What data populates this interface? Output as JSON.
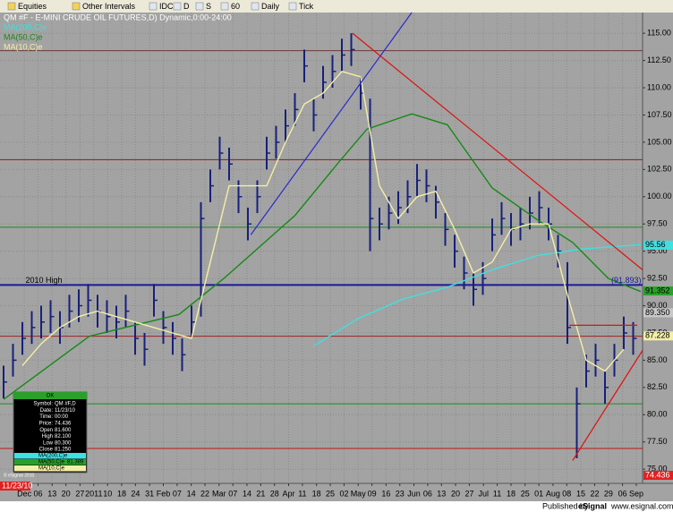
{
  "chart_data": {
    "type": "ohlc",
    "title": "QM #F - E-MINI CRUDE OIL FUTURES,D) Dynamic,0:00-24:00",
    "color": "#17207a",
    "x": [
      0,
      3,
      6,
      9,
      12,
      15,
      18,
      21,
      24,
      27,
      30,
      33,
      36,
      39,
      42,
      45,
      48,
      51,
      54,
      57,
      60,
      63,
      66,
      69,
      72,
      75,
      78,
      81,
      84,
      87,
      90,
      93,
      96,
      99,
      102,
      105,
      108,
      111,
      114,
      117,
      120,
      123,
      126,
      129,
      132,
      135,
      138,
      141,
      144,
      147,
      150,
      153,
      156,
      159,
      162,
      165,
      168,
      171,
      174,
      177,
      180,
      183,
      186,
      189,
      192,
      195,
      198,
      201
    ],
    "high": [
      84.5,
      86.5,
      88.5,
      89.5,
      90,
      90.5,
      89.5,
      91,
      91.5,
      92,
      91,
      90.5,
      90,
      91,
      88.5,
      87.5,
      92,
      89.5,
      88.5,
      87,
      90,
      99.5,
      102.5,
      105.5,
      104.5,
      101.5,
      99,
      101.5,
      105.5,
      106.5,
      108,
      109.5,
      113.5,
      109,
      112,
      113,
      114.5,
      115,
      111,
      109,
      99,
      100,
      100.5,
      101.5,
      103,
      102.5,
      101,
      98.5,
      96.5,
      94.5,
      93,
      94,
      98,
      99.5,
      98.5,
      99,
      100,
      100.5,
      99,
      96.5,
      94,
      82.5,
      85.5,
      86.5,
      84,
      86.5,
      89,
      88.5
    ],
    "low": [
      81.5,
      83.5,
      85.5,
      86.5,
      87,
      87.5,
      86.5,
      88,
      88.5,
      89,
      88,
      87.5,
      87,
      88,
      85.5,
      84.5,
      89,
      86.5,
      85.5,
      84,
      87,
      89,
      99.5,
      102.5,
      101.5,
      98.5,
      96,
      98.5,
      102.5,
      103.5,
      105,
      106.5,
      110.5,
      106,
      109,
      110,
      111.5,
      112,
      108,
      95,
      96,
      97,
      97.5,
      98.5,
      100,
      99.5,
      98,
      95.5,
      93.5,
      91.5,
      90,
      91,
      95,
      96.5,
      95.5,
      96,
      97,
      97.5,
      96,
      93.5,
      86.5,
      76,
      82.5,
      83.5,
      81,
      83.5,
      86,
      85.5
    ],
    "close": [
      83,
      85,
      87,
      88,
      88.5,
      89,
      88,
      89.5,
      90,
      90.5,
      89.5,
      89,
      88.5,
      89.5,
      87,
      86,
      90.5,
      88,
      87,
      85.5,
      88.5,
      98,
      101,
      104,
      103,
      100,
      97.5,
      100,
      104,
      105,
      106.5,
      108,
      112,
      107.5,
      110.5,
      111.5,
      113,
      113.5,
      109.5,
      98,
      97.5,
      98.5,
      99,
      100,
      101.5,
      101,
      99.5,
      97,
      95,
      93,
      91.5,
      92.5,
      96.5,
      98,
      97,
      97.5,
      98.5,
      99,
      97.5,
      95,
      88,
      81,
      84,
      85,
      82.5,
      85,
      87.5,
      87
    ],
    "series": [
      {
        "name": "MA(200,C)e",
        "color": "#3fe0e0",
        "x": [
          98.9,
          113.1,
          127.4,
          141.7,
          156,
          170.3,
          184.6,
          203.4
        ],
        "values": [
          86.3,
          88.8,
          90.6,
          91.7,
          93.3,
          94.6,
          95.2,
          95.6
        ]
      },
      {
        "name": "MA(50,C)e",
        "color": "#168a16",
        "x": [
          0,
          27.4,
          56,
          70.3,
          93.1,
          107.4,
          116,
          130.3,
          141.7,
          156,
          170.3,
          181.7,
          193.1,
          203.4
        ],
        "values": [
          81.4,
          87.2,
          89.2,
          92.5,
          98.3,
          103.3,
          106.2,
          107.6,
          106.6,
          100.8,
          97.9,
          95.8,
          92.5,
          91.3
        ]
      },
      {
        "name": "MA(10,C)e",
        "color": "#f3efa6",
        "x": [
          6,
          12,
          18,
          24,
          30,
          36,
          42,
          48,
          54,
          60,
          66,
          72,
          78,
          84,
          90,
          96,
          102,
          108,
          114,
          120,
          126,
          132,
          138,
          144,
          150,
          156,
          162,
          168,
          174,
          180,
          186,
          192,
          198
        ],
        "values": [
          84.5,
          86.5,
          88,
          89,
          89.5,
          89,
          88.5,
          88,
          87.5,
          87,
          94,
          101,
          101,
          101,
          105,
          108.5,
          109.5,
          111.5,
          111,
          101,
          98,
          100,
          100.5,
          97,
          93,
          94,
          97,
          97.5,
          97.5,
          91,
          85,
          84,
          86
        ]
      }
    ],
    "levels": [
      {
        "value": 91.9,
        "color": "#1a1a9a"
      },
      {
        "value": 103.4,
        "color": "#8b1a1a"
      },
      {
        "value": 87.2,
        "color": "#a02020"
      },
      {
        "value": 97.2,
        "color": "#1e8a1e"
      },
      {
        "value": 81.0,
        "color": "#1e8a1e"
      },
      {
        "value": 76.9,
        "color": "#c01010"
      },
      {
        "value": 113.4,
        "color": "#6a3a3a"
      }
    ],
    "trendlines": [
      {
        "x": [
          78.9,
          130.3
        ],
        "values": [
          96.5,
          116.9
        ],
        "color": "#2a2ad0"
      },
      {
        "x": [
          111.4,
          204
        ],
        "values": [
          115,
          93.3
        ],
        "color": "#e01010"
      },
      {
        "x": [
          181.7,
          204
        ],
        "values": [
          75.8,
          85.9
        ],
        "color": "#e01010"
      },
      {
        "x": [
          180.6,
          202.3
        ],
        "values": [
          88.2,
          88.2
        ],
        "color": "#e01010"
      }
    ],
    "annotations": [
      {
        "text": "2010 High",
        "x": 7,
        "y": 92.3
      },
      {
        "text": "(91.893)",
        "x": 194,
        "y": 92.3
      }
    ],
    "price_tags": [
      {
        "value": 95.56,
        "label": "95.56",
        "color": "#3fe0e0"
      },
      {
        "value": 91.352,
        "label": "91.352",
        "color": "#2aa02a"
      },
      {
        "value": 89.35,
        "label": "89.350",
        "color": "#c8c8c8"
      },
      {
        "value": 87.228,
        "label": "87.228",
        "color": "#f3efa6"
      },
      {
        "value": 74.436,
        "label": "74.436",
        "color": "#e02020"
      }
    ],
    "date_tag": "11/23/10",
    "xlim": [
      0,
      204
    ],
    "ylim": [
      73.7,
      116.9
    ],
    "yticks": [
      {
        "value": 75,
        "label": "75.00"
      },
      {
        "value": 77.5,
        "label": "77.50"
      },
      {
        "value": 80,
        "label": "80.00"
      },
      {
        "value": 82.5,
        "label": "82.50"
      },
      {
        "value": 85,
        "label": "85.00"
      },
      {
        "value": 87.5,
        "label": "87.50"
      },
      {
        "value": 90,
        "label": "90.00"
      },
      {
        "value": 92.5,
        "label": "92.50"
      },
      {
        "value": 95,
        "label": "95.00"
      },
      {
        "value": 97.5,
        "label": "97.50"
      },
      {
        "value": 100,
        "label": "100.00"
      },
      {
        "value": 102.5,
        "label": "102.50"
      },
      {
        "value": 105,
        "label": "105.00"
      },
      {
        "value": 107.5,
        "label": "107.50"
      },
      {
        "value": 110,
        "label": "110.00"
      },
      {
        "value": 112.5,
        "label": "112.50"
      },
      {
        "value": 115,
        "label": "115.00"
      }
    ],
    "xticks": [
      {
        "value": 6.6,
        "label": "Dec"
      },
      {
        "value": 11.0,
        "label": "06"
      },
      {
        "value": 15.5,
        "label": "13"
      },
      {
        "value": 19.9,
        "label": "20"
      },
      {
        "value": 24.4,
        "label": "27"
      },
      {
        "value": 28.8,
        "label": "2011"
      },
      {
        "value": 33.2,
        "label": "10"
      },
      {
        "value": 37.7,
        "label": "18"
      },
      {
        "value": 42.1,
        "label": "24"
      },
      {
        "value": 46.6,
        "label": "31"
      },
      {
        "value": 51.0,
        "label": "Feb"
      },
      {
        "value": 55.4,
        "label": "07"
      },
      {
        "value": 59.9,
        "label": "14"
      },
      {
        "value": 64.3,
        "label": "22"
      },
      {
        "value": 68.8,
        "label": "Mar"
      },
      {
        "value": 73.2,
        "label": "07"
      },
      {
        "value": 77.7,
        "label": "14"
      },
      {
        "value": 82.1,
        "label": "21"
      },
      {
        "value": 86.5,
        "label": "28"
      },
      {
        "value": 91.0,
        "label": "Apr"
      },
      {
        "value": 95.4,
        "label": "11"
      },
      {
        "value": 99.9,
        "label": "18"
      },
      {
        "value": 104.3,
        "label": "25"
      },
      {
        "value": 108.7,
        "label": "02"
      },
      {
        "value": 113.2,
        "label": "May"
      },
      {
        "value": 117.6,
        "label": "09"
      },
      {
        "value": 122.1,
        "label": "16"
      },
      {
        "value": 126.5,
        "label": "23"
      },
      {
        "value": 131.0,
        "label": "Jun"
      },
      {
        "value": 135.4,
        "label": "06"
      },
      {
        "value": 139.8,
        "label": "13"
      },
      {
        "value": 144.3,
        "label": "20"
      },
      {
        "value": 148.7,
        "label": "27"
      },
      {
        "value": 153.2,
        "label": "Jul"
      },
      {
        "value": 157.6,
        "label": "11"
      },
      {
        "value": 162.0,
        "label": "18"
      },
      {
        "value": 166.5,
        "label": "25"
      },
      {
        "value": 170.9,
        "label": "01"
      },
      {
        "value": 175.4,
        "label": "Aug"
      },
      {
        "value": 179.8,
        "label": "08"
      },
      {
        "value": 184.3,
        "label": "15"
      },
      {
        "value": 188.7,
        "label": "22"
      },
      {
        "value": 193.1,
        "label": "29"
      },
      {
        "value": 197.6,
        "label": "06"
      },
      {
        "value": 202.0,
        "label": "Sep"
      }
    ],
    "grid": true
  },
  "toolbar": [
    "Equities",
    "Other Intervals",
    "IDC",
    "D",
    "S",
    "60",
    "Daily",
    "Tick"
  ],
  "data_window": {
    "header": "OK",
    "rows": [
      [
        "Symbol:",
        "QM #F,D"
      ],
      [
        "Date:",
        "11/23/10"
      ],
      [
        "Time:",
        "00:00"
      ],
      [
        "Price:",
        "74.436"
      ],
      [
        "Open",
        "81.600"
      ],
      [
        "High",
        "82.100"
      ],
      [
        "Low",
        "80.300"
      ],
      [
        "Close",
        "81.250"
      ]
    ],
    "ma_rows": [
      [
        "MA(200,C)e"
      ],
      [
        "MA(50,C)e",
        "81.389"
      ],
      [
        "MA(10,C)e"
      ]
    ]
  },
  "copyright": "© eSignal 2010",
  "status": {
    "published": "Published by",
    "brand": "eSignal",
    "url": "www.esignal.com"
  }
}
